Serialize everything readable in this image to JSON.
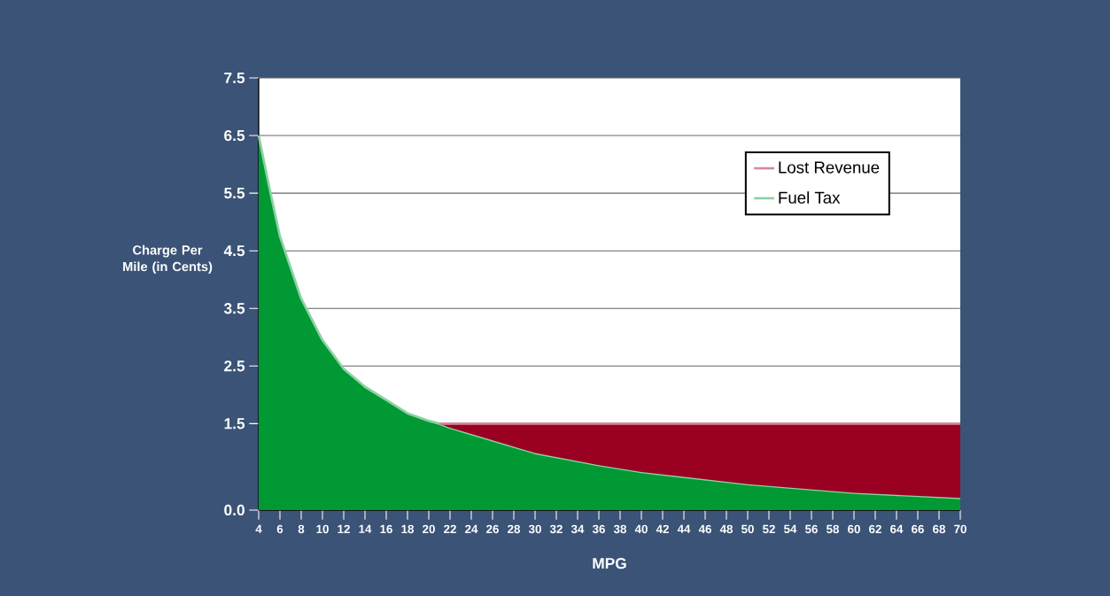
{
  "chart_data": {
    "type": "area",
    "xlabel": "MPG",
    "ylabel": "Charge Per Mile (in Cents)",
    "x": [
      4,
      5,
      6,
      8,
      10,
      12,
      14,
      16,
      18,
      20,
      21,
      22,
      24,
      30,
      36,
      40,
      50,
      60,
      70
    ],
    "series": [
      {
        "name": "Fuel Tax",
        "color": "#009933",
        "values": [
          6.5,
          5.6,
          4.75,
          3.67,
          2.95,
          2.45,
          2.14,
          1.91,
          1.68,
          1.55,
          1.5,
          1.43,
          1.32,
          0.99,
          0.78,
          0.66,
          0.45,
          0.3,
          0.21
        ]
      },
      {
        "name": "Lost Revenue",
        "color": "#990022",
        "values": [
          null,
          null,
          null,
          null,
          null,
          null,
          null,
          null,
          null,
          null,
          0,
          0.07,
          0.18,
          0.51,
          0.72,
          0.84,
          1.05,
          1.2,
          1.29
        ]
      }
    ],
    "stacked": true,
    "xlim": [
      4,
      70
    ],
    "xticks": [
      4,
      6,
      8,
      10,
      12,
      14,
      16,
      18,
      20,
      22,
      24,
      26,
      28,
      30,
      32,
      34,
      36,
      38,
      40,
      42,
      44,
      46,
      48,
      50,
      52,
      54,
      56,
      58,
      60,
      62,
      64,
      66,
      68,
      70
    ],
    "ylim": [
      0,
      7.5
    ],
    "yticks": [
      {
        "value": 0,
        "label": "0.0"
      },
      1.5,
      2.5,
      3.5,
      4.5,
      5.5,
      6.5,
      7.5
    ],
    "grid": "y",
    "legend": "top right"
  }
}
